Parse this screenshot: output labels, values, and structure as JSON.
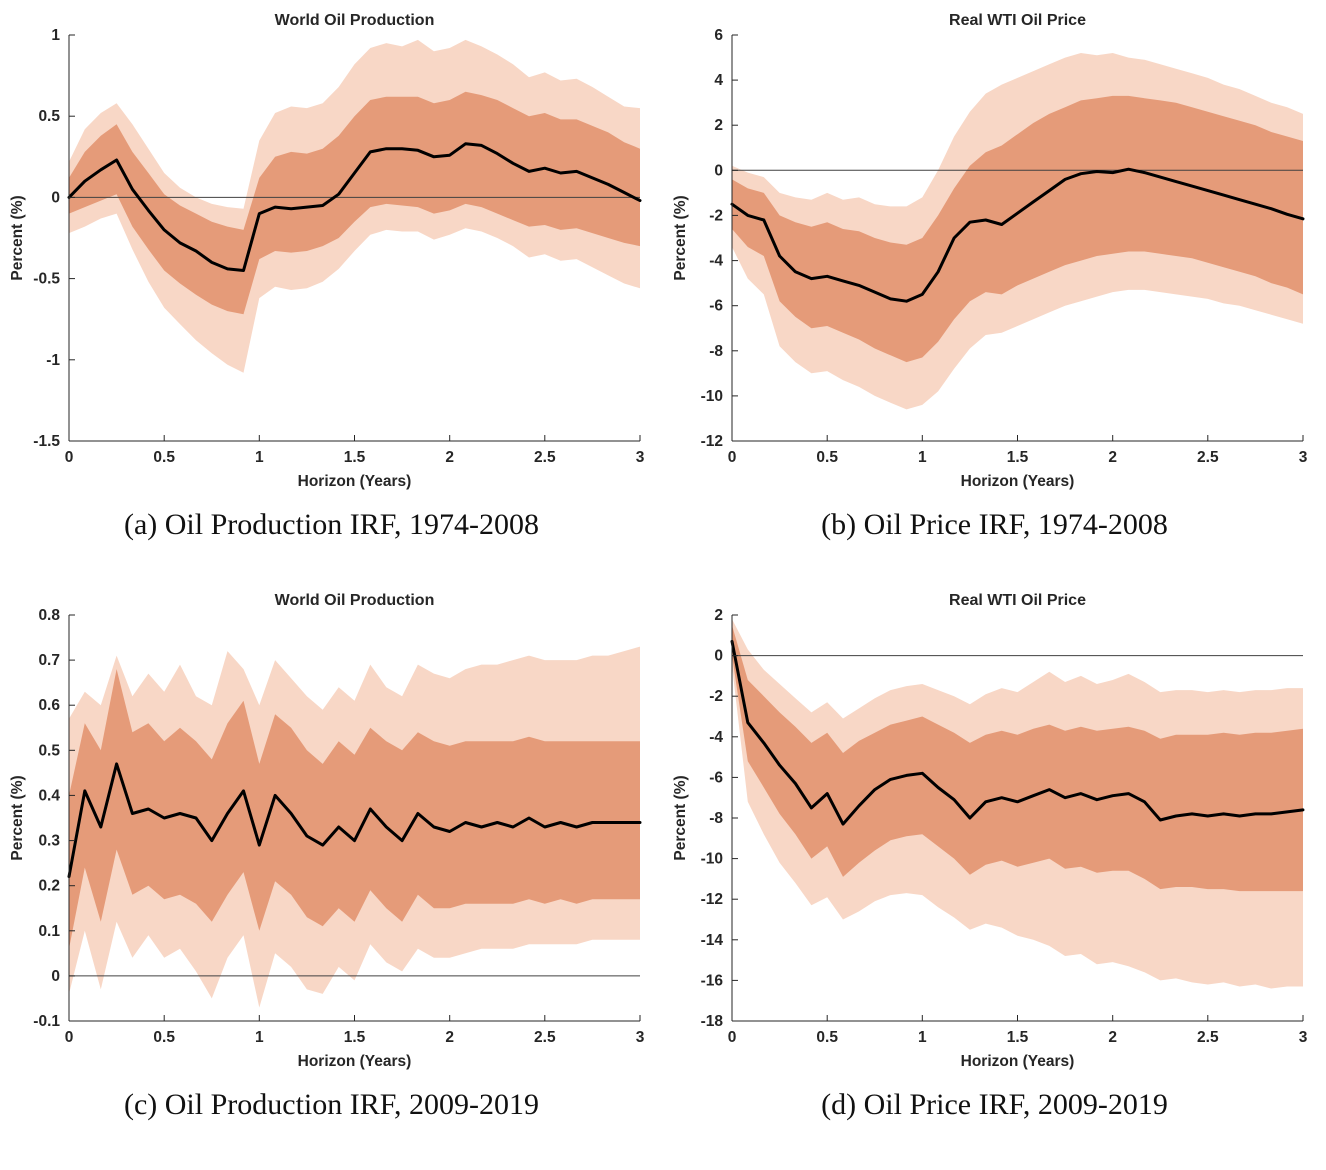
{
  "figure": {
    "colors": {
      "band_inner": "#e59b79",
      "band_outer": "#f8d7c6",
      "irf_line": "#000000",
      "zero_line": "#404040",
      "axis": "#262626"
    }
  },
  "chart_data": [
    {
      "id": "a",
      "type": "line",
      "title": "World Oil Production",
      "xlabel": "Horizon (Years)",
      "ylabel": "Percent (%)",
      "caption": "(a) Oil Production IRF, 1974-2008",
      "legend_position": "none",
      "grid": false,
      "xlim": [
        0,
        3
      ],
      "ylim": [
        -1.5,
        1
      ],
      "xtick_labels": [
        "0",
        "0.5",
        "1",
        "1.5",
        "2",
        "2.5",
        "3"
      ],
      "ytick_labels": [
        "-1.5",
        "-1",
        "-0.5",
        "0",
        "0.5",
        "1"
      ],
      "zero_line": true,
      "x": [
        0,
        0.083,
        0.167,
        0.25,
        0.333,
        0.417,
        0.5,
        0.583,
        0.667,
        0.75,
        0.833,
        0.917,
        1,
        1.083,
        1.167,
        1.25,
        1.333,
        1.417,
        1.5,
        1.583,
        1.667,
        1.75,
        1.833,
        1.917,
        2,
        2.083,
        2.167,
        2.25,
        2.333,
        2.417,
        2.5,
        2.583,
        2.667,
        2.75,
        2.833,
        2.917,
        3
      ],
      "series": [
        {
          "name": "IRF",
          "values": [
            0,
            0.1,
            0.17,
            0.23,
            0.05,
            -0.08,
            -0.2,
            -0.28,
            -0.33,
            -0.4,
            -0.44,
            -0.45,
            -0.1,
            -0.06,
            -0.07,
            -0.06,
            -0.05,
            0.02,
            0.15,
            0.28,
            0.3,
            0.3,
            0.29,
            0.25,
            0.26,
            0.33,
            0.32,
            0.27,
            0.21,
            0.16,
            0.18,
            0.15,
            0.16,
            0.12,
            0.08,
            0.03,
            -0.02
          ]
        }
      ],
      "bands": {
        "inner_upper": [
          0.12,
          0.28,
          0.38,
          0.45,
          0.28,
          0.15,
          0.02,
          -0.05,
          -0.1,
          -0.15,
          -0.18,
          -0.2,
          0.12,
          0.25,
          0.28,
          0.27,
          0.3,
          0.38,
          0.5,
          0.6,
          0.62,
          0.62,
          0.62,
          0.58,
          0.6,
          0.65,
          0.63,
          0.6,
          0.55,
          0.5,
          0.52,
          0.48,
          0.48,
          0.44,
          0.4,
          0.34,
          0.3
        ],
        "inner_lower": [
          -0.1,
          -0.06,
          -0.02,
          0.02,
          -0.18,
          -0.32,
          -0.45,
          -0.53,
          -0.6,
          -0.66,
          -0.7,
          -0.72,
          -0.38,
          -0.33,
          -0.34,
          -0.33,
          -0.3,
          -0.25,
          -0.15,
          -0.06,
          -0.04,
          -0.05,
          -0.06,
          -0.1,
          -0.08,
          -0.04,
          -0.06,
          -0.1,
          -0.14,
          -0.18,
          -0.17,
          -0.2,
          -0.19,
          -0.22,
          -0.25,
          -0.28,
          -0.3
        ],
        "outer_upper": [
          0.22,
          0.42,
          0.52,
          0.58,
          0.45,
          0.3,
          0.15,
          0.06,
          0,
          -0.04,
          -0.06,
          -0.07,
          0.35,
          0.52,
          0.56,
          0.55,
          0.58,
          0.68,
          0.82,
          0.92,
          0.95,
          0.93,
          0.97,
          0.9,
          0.92,
          0.97,
          0.93,
          0.88,
          0.82,
          0.74,
          0.77,
          0.72,
          0.73,
          0.68,
          0.62,
          0.56,
          0.55
        ],
        "outer_lower": [
          -0.22,
          -0.18,
          -0.13,
          -0.1,
          -0.32,
          -0.52,
          -0.68,
          -0.78,
          -0.88,
          -0.96,
          -1.03,
          -1.08,
          -0.62,
          -0.55,
          -0.57,
          -0.56,
          -0.52,
          -0.44,
          -0.33,
          -0.23,
          -0.2,
          -0.21,
          -0.21,
          -0.26,
          -0.23,
          -0.19,
          -0.21,
          -0.25,
          -0.3,
          -0.37,
          -0.35,
          -0.39,
          -0.38,
          -0.43,
          -0.48,
          -0.53,
          -0.56
        ]
      }
    },
    {
      "id": "b",
      "type": "line",
      "title": "Real WTI Oil Price",
      "xlabel": "Horizon (Years)",
      "ylabel": "Percent (%)",
      "caption": "(b) Oil Price IRF, 1974-2008",
      "legend_position": "none",
      "grid": false,
      "xlim": [
        0,
        3
      ],
      "ylim": [
        -12,
        6
      ],
      "xtick_labels": [
        "0",
        "0.5",
        "1",
        "1.5",
        "2",
        "2.5",
        "3"
      ],
      "ytick_labels": [
        "-12",
        "-10",
        "-8",
        "-6",
        "-4",
        "-2",
        "0",
        "2",
        "4",
        "6"
      ],
      "zero_line": true,
      "x": [
        0,
        0.083,
        0.167,
        0.25,
        0.333,
        0.417,
        0.5,
        0.583,
        0.667,
        0.75,
        0.833,
        0.917,
        1,
        1.083,
        1.167,
        1.25,
        1.333,
        1.417,
        1.5,
        1.583,
        1.667,
        1.75,
        1.833,
        1.917,
        2,
        2.083,
        2.167,
        2.25,
        2.333,
        2.417,
        2.5,
        2.583,
        2.667,
        2.75,
        2.833,
        2.917,
        3
      ],
      "series": [
        {
          "name": "IRF",
          "values": [
            -1.5,
            -2,
            -2.2,
            -3.8,
            -4.5,
            -4.8,
            -4.7,
            -4.9,
            -5.1,
            -5.4,
            -5.7,
            -5.8,
            -5.5,
            -4.5,
            -3,
            -2.3,
            -2.2,
            -2.4,
            -1.9,
            -1.4,
            -0.9,
            -0.4,
            -0.15,
            -0.05,
            -0.1,
            0.05,
            -0.1,
            -0.3,
            -0.5,
            -0.7,
            -0.9,
            -1.1,
            -1.3,
            -1.5,
            -1.7,
            -1.95,
            -2.15
          ]
        }
      ],
      "bands": {
        "inner_upper": [
          -0.4,
          -0.8,
          -1,
          -2,
          -2.3,
          -2.5,
          -2.3,
          -2.6,
          -2.7,
          -3,
          -3.2,
          -3.3,
          -3,
          -2,
          -0.8,
          0.2,
          0.8,
          1.1,
          1.6,
          2.1,
          2.5,
          2.8,
          3.1,
          3.2,
          3.3,
          3.3,
          3.2,
          3.1,
          3,
          2.8,
          2.6,
          2.4,
          2.2,
          2,
          1.7,
          1.5,
          1.3
        ],
        "inner_lower": [
          -2.6,
          -3.4,
          -3.8,
          -5.8,
          -6.5,
          -7,
          -6.9,
          -7.2,
          -7.5,
          -7.9,
          -8.2,
          -8.5,
          -8.3,
          -7.6,
          -6.6,
          -5.8,
          -5.4,
          -5.5,
          -5.1,
          -4.8,
          -4.5,
          -4.2,
          -4,
          -3.8,
          -3.7,
          -3.6,
          -3.6,
          -3.7,
          -3.8,
          -3.9,
          -4.1,
          -4.3,
          -4.5,
          -4.7,
          -5,
          -5.2,
          -5.5
        ],
        "outer_upper": [
          0.2,
          -0.1,
          -0.3,
          -1,
          -1.2,
          -1.3,
          -1,
          -1.3,
          -1.2,
          -1.5,
          -1.6,
          -1.6,
          -1.2,
          0,
          1.5,
          2.6,
          3.4,
          3.8,
          4.1,
          4.4,
          4.7,
          5,
          5.2,
          5.1,
          5.2,
          5,
          4.9,
          4.7,
          4.5,
          4.3,
          4.1,
          3.8,
          3.6,
          3.3,
          3,
          2.8,
          2.5
        ],
        "outer_lower": [
          -3.4,
          -4.8,
          -5.5,
          -7.8,
          -8.5,
          -9,
          -8.9,
          -9.3,
          -9.6,
          -10,
          -10.3,
          -10.6,
          -10.4,
          -9.8,
          -8.8,
          -7.9,
          -7.3,
          -7.2,
          -6.9,
          -6.6,
          -6.3,
          -6,
          -5.8,
          -5.6,
          -5.4,
          -5.3,
          -5.3,
          -5.4,
          -5.5,
          -5.6,
          -5.7,
          -5.9,
          -6,
          -6.2,
          -6.4,
          -6.6,
          -6.8
        ]
      }
    },
    {
      "id": "c",
      "type": "line",
      "title": "World Oil Production",
      "xlabel": "Horizon (Years)",
      "ylabel": "Percent (%)",
      "caption": "(c) Oil Production IRF, 2009-2019",
      "legend_position": "none",
      "grid": false,
      "xlim": [
        0,
        3
      ],
      "ylim": [
        -0.1,
        0.8
      ],
      "xtick_labels": [
        "0",
        "0.5",
        "1",
        "1.5",
        "2",
        "2.5",
        "3"
      ],
      "ytick_labels": [
        "-0.1",
        "0",
        "0.1",
        "0.2",
        "0.3",
        "0.4",
        "0.5",
        "0.6",
        "0.7",
        "0.8"
      ],
      "zero_line": true,
      "x": [
        0,
        0.083,
        0.167,
        0.25,
        0.333,
        0.417,
        0.5,
        0.583,
        0.667,
        0.75,
        0.833,
        0.917,
        1,
        1.083,
        1.167,
        1.25,
        1.333,
        1.417,
        1.5,
        1.583,
        1.667,
        1.75,
        1.833,
        1.917,
        2,
        2.083,
        2.167,
        2.25,
        2.333,
        2.417,
        2.5,
        2.583,
        2.667,
        2.75,
        2.833,
        2.917,
        3
      ],
      "series": [
        {
          "name": "IRF",
          "values": [
            0.22,
            0.41,
            0.33,
            0.47,
            0.36,
            0.37,
            0.35,
            0.36,
            0.35,
            0.3,
            0.36,
            0.41,
            0.29,
            0.4,
            0.36,
            0.31,
            0.29,
            0.33,
            0.3,
            0.37,
            0.33,
            0.3,
            0.36,
            0.33,
            0.32,
            0.34,
            0.33,
            0.34,
            0.33,
            0.35,
            0.33,
            0.34,
            0.33,
            0.34,
            0.34,
            0.34,
            0.34
          ]
        }
      ],
      "bands": {
        "inner_upper": [
          0.4,
          0.56,
          0.5,
          0.68,
          0.54,
          0.56,
          0.52,
          0.55,
          0.52,
          0.48,
          0.56,
          0.61,
          0.47,
          0.58,
          0.55,
          0.5,
          0.47,
          0.52,
          0.49,
          0.55,
          0.52,
          0.5,
          0.54,
          0.52,
          0.51,
          0.52,
          0.52,
          0.52,
          0.52,
          0.53,
          0.52,
          0.52,
          0.52,
          0.52,
          0.52,
          0.52,
          0.52
        ],
        "inner_lower": [
          0.06,
          0.24,
          0.12,
          0.28,
          0.18,
          0.2,
          0.17,
          0.18,
          0.16,
          0.12,
          0.18,
          0.23,
          0.1,
          0.21,
          0.18,
          0.13,
          0.11,
          0.15,
          0.12,
          0.19,
          0.15,
          0.12,
          0.18,
          0.15,
          0.15,
          0.16,
          0.16,
          0.16,
          0.16,
          0.17,
          0.16,
          0.17,
          0.16,
          0.17,
          0.17,
          0.17,
          0.17
        ],
        "outer_upper": [
          0.57,
          0.63,
          0.6,
          0.71,
          0.62,
          0.67,
          0.63,
          0.69,
          0.62,
          0.6,
          0.72,
          0.68,
          0.6,
          0.7,
          0.66,
          0.62,
          0.59,
          0.64,
          0.61,
          0.69,
          0.64,
          0.62,
          0.69,
          0.67,
          0.66,
          0.68,
          0.69,
          0.69,
          0.7,
          0.71,
          0.7,
          0.7,
          0.7,
          0.71,
          0.71,
          0.72,
          0.73
        ],
        "outer_lower": [
          -0.04,
          0.1,
          -0.03,
          0.12,
          0.04,
          0.09,
          0.04,
          0.06,
          0.01,
          -0.05,
          0.04,
          0.09,
          -0.07,
          0.05,
          0.02,
          -0.03,
          -0.04,
          0.02,
          -0.01,
          0.07,
          0.03,
          0.01,
          0.06,
          0.04,
          0.04,
          0.05,
          0.06,
          0.06,
          0.06,
          0.07,
          0.07,
          0.07,
          0.07,
          0.08,
          0.08,
          0.08,
          0.08
        ]
      }
    },
    {
      "id": "d",
      "type": "line",
      "title": "Real WTI Oil Price",
      "xlabel": "Horizon (Years)",
      "ylabel": "Percent (%)",
      "caption": "(d) Oil Price IRF, 2009-2019",
      "legend_position": "none",
      "grid": false,
      "xlim": [
        0,
        3
      ],
      "ylim": [
        -18,
        2
      ],
      "xtick_labels": [
        "0",
        "0.5",
        "1",
        "1.5",
        "2",
        "2.5",
        "3"
      ],
      "ytick_labels": [
        "-18",
        "-16",
        "-14",
        "-12",
        "-10",
        "-8",
        "-6",
        "-4",
        "-2",
        "0",
        "2"
      ],
      "zero_line": true,
      "x": [
        0,
        0.083,
        0.167,
        0.25,
        0.333,
        0.417,
        0.5,
        0.583,
        0.667,
        0.75,
        0.833,
        0.917,
        1,
        1.083,
        1.167,
        1.25,
        1.333,
        1.417,
        1.5,
        1.583,
        1.667,
        1.75,
        1.833,
        1.917,
        2,
        2.083,
        2.167,
        2.25,
        2.333,
        2.417,
        2.5,
        2.583,
        2.667,
        2.75,
        2.833,
        2.917,
        3
      ],
      "series": [
        {
          "name": "IRF",
          "values": [
            0.7,
            -3.3,
            -4.3,
            -5.4,
            -6.3,
            -7.5,
            -6.8,
            -8.3,
            -7.4,
            -6.6,
            -6.1,
            -5.9,
            -5.8,
            -6.5,
            -7.1,
            -8,
            -7.2,
            -7,
            -7.2,
            -6.9,
            -6.6,
            -7,
            -6.8,
            -7.1,
            -6.9,
            -6.8,
            -7.2,
            -8.1,
            -7.9,
            -7.8,
            -7.9,
            -7.8,
            -7.9,
            -7.8,
            -7.8,
            -7.7,
            -7.6
          ]
        }
      ],
      "bands": {
        "inner_upper": [
          1.5,
          -1.2,
          -2,
          -2.8,
          -3.5,
          -4.3,
          -3.8,
          -4.8,
          -4.2,
          -3.8,
          -3.4,
          -3.2,
          -3,
          -3.4,
          -3.8,
          -4.3,
          -3.9,
          -3.7,
          -3.9,
          -3.6,
          -3.4,
          -3.7,
          -3.5,
          -3.7,
          -3.6,
          -3.5,
          -3.7,
          -4.1,
          -3.9,
          -3.9,
          -3.9,
          -3.8,
          -3.9,
          -3.8,
          -3.8,
          -3.7,
          -3.6
        ],
        "inner_lower": [
          0,
          -5.2,
          -6.5,
          -7.8,
          -8.8,
          -10,
          -9.4,
          -10.9,
          -10.2,
          -9.6,
          -9.1,
          -8.9,
          -8.8,
          -9.4,
          -10,
          -10.8,
          -10.3,
          -10.1,
          -10.4,
          -10.2,
          -10,
          -10.5,
          -10.4,
          -10.7,
          -10.6,
          -10.6,
          -11,
          -11.5,
          -11.4,
          -11.4,
          -11.5,
          -11.5,
          -11.6,
          -11.6,
          -11.6,
          -11.6,
          -11.6
        ],
        "outer_upper": [
          1.8,
          0.3,
          -0.7,
          -1.4,
          -2.1,
          -2.8,
          -2.3,
          -3.1,
          -2.6,
          -2.1,
          -1.7,
          -1.5,
          -1.4,
          -1.7,
          -2,
          -2.4,
          -1.9,
          -1.6,
          -1.8,
          -1.3,
          -0.8,
          -1.3,
          -1,
          -1.4,
          -1.2,
          -0.9,
          -1.3,
          -1.8,
          -1.7,
          -1.7,
          -1.8,
          -1.7,
          -1.8,
          -1.7,
          -1.7,
          -1.6,
          -1.6
        ],
        "outer_lower": [
          -0.5,
          -7.2,
          -8.8,
          -10.2,
          -11.2,
          -12.3,
          -11.9,
          -13,
          -12.6,
          -12.1,
          -11.8,
          -11.7,
          -11.8,
          -12.4,
          -12.9,
          -13.5,
          -13.2,
          -13.4,
          -13.8,
          -14,
          -14.3,
          -14.8,
          -14.7,
          -15.2,
          -15.1,
          -15.3,
          -15.6,
          -16,
          -15.9,
          -16.1,
          -16.2,
          -16.1,
          -16.3,
          -16.2,
          -16.4,
          -16.3,
          -16.3
        ]
      }
    }
  ]
}
